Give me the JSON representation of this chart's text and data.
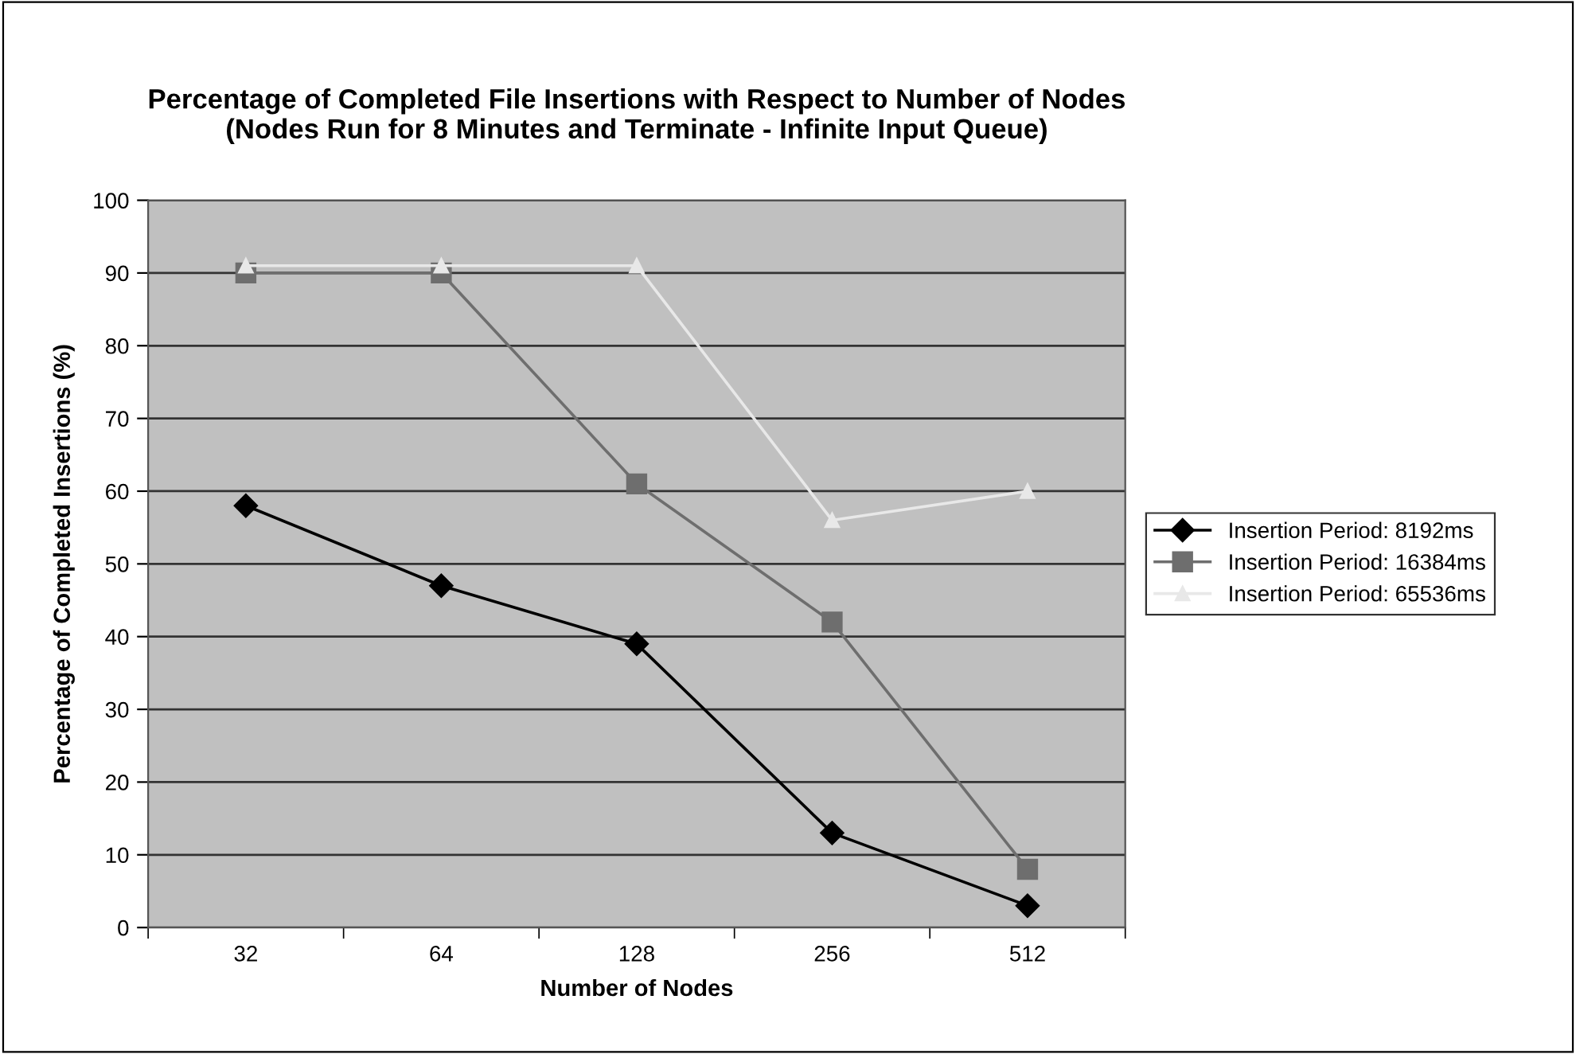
{
  "chart_data": {
    "type": "line",
    "title": "Percentage of Completed File Insertions with Respect to Number of Nodes\n(Nodes Run for 8 Minutes and Terminate - Infinite Input Queue)",
    "xlabel": "Number of Nodes",
    "ylabel": "Percentage of Completed Insertions (%)",
    "categories": [
      "32",
      "64",
      "128",
      "256",
      "512"
    ],
    "series": [
      {
        "name": "Insertion Period: 8192ms",
        "color": "#000000",
        "marker": "diamond",
        "values": [
          58,
          47,
          39,
          13,
          3
        ]
      },
      {
        "name": "Insertion Period: 16384ms",
        "color": "#6e6e6e",
        "marker": "square",
        "values": [
          90,
          90,
          61,
          42,
          8
        ]
      },
      {
        "name": "Insertion Period: 65536ms",
        "color": "#e8e8e8",
        "marker": "triangle",
        "values": [
          91,
          91,
          91,
          56,
          60
        ]
      }
    ],
    "ylim": [
      0,
      100
    ],
    "yticks": [
      0,
      10,
      20,
      30,
      40,
      50,
      60,
      70,
      80,
      90,
      100
    ],
    "grid": "y",
    "legend": "right",
    "line_style": "solid"
  }
}
